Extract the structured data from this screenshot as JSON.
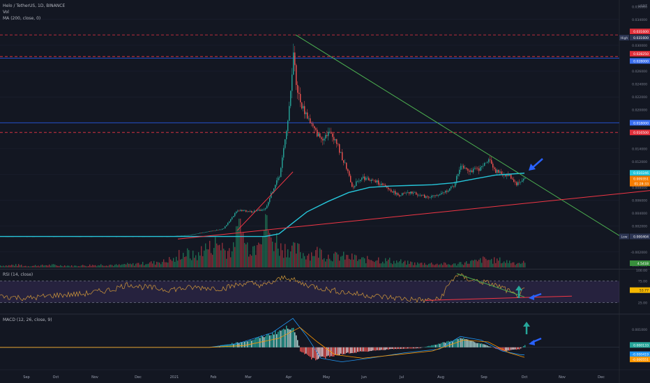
{
  "header": {
    "symbol_line": "Helo / TetherUS, 1D, BINANCE",
    "vol_label": "Vol",
    "ma_label": "MA (200, close, 0)"
  },
  "price_axis": {
    "unit": "USDT",
    "ticks": [
      "0.036000",
      "0.034000",
      "0.030000",
      "0.026000",
      "0.024000",
      "0.022000",
      "0.020000",
      "0.018000",
      "0.014000",
      "0.012000",
      "0.008000",
      "0.006000",
      "0.004000",
      "0.002000",
      "-0.002000",
      "-0.004000"
    ],
    "high_label": "High",
    "low_label": "Low"
  },
  "price_badges": [
    {
      "text": "0.031600",
      "color": "#e0303b"
    },
    {
      "text": "0.031600",
      "color": "#2c3553"
    },
    {
      "text": "0.028250",
      "color": "#e0303b"
    },
    {
      "text": "0.028000",
      "color": "#3a6ff0"
    },
    {
      "text": "0.018000",
      "color": "#3a6ff0"
    },
    {
      "text": "0.016500",
      "color": "#e0303b"
    },
    {
      "text": "0.010246",
      "color": "#26c6da"
    },
    {
      "text": "0.009351",
      "color": "#f57c00"
    },
    {
      "text": "01:28:33",
      "color": "#f57c00"
    },
    {
      "text": "0.000404",
      "color": "#2c3553"
    },
    {
      "text": "4.541B",
      "color": "#388e3c"
    }
  ],
  "rsi": {
    "label": "RSI (14, close)",
    "ticks": [
      "100.00",
      "75.00",
      "25.00"
    ],
    "value": "53.77"
  },
  "macd": {
    "label": "MACD (12, 26, close, 9)",
    "ticks": [
      "0.001000",
      "0.000133",
      "-0.000419",
      "-0.000551"
    ]
  },
  "time_axis": [
    "Sep",
    "Oct",
    "Nov",
    "Dec",
    "2021",
    "Feb",
    "Mar",
    "Apr",
    "May",
    "Jun",
    "Jul",
    "Aug",
    "Sep",
    "Oct",
    "Nov",
    "Dec"
  ],
  "colors": {
    "up": "#26a69a",
    "down": "#ef5350",
    "ma": "#26c6da",
    "trend_down": "#4caf50",
    "trend_up": "#f23645",
    "h_red": "#f23645",
    "h_blue": "#2962ff",
    "rsi": "#d49a3a",
    "rsi_band": "#7e57c2",
    "macd": "#2196f3",
    "signal": "#ff9800",
    "arrow_blue": "#2962ff",
    "arrow_teal": "#26a69a"
  },
  "chart_data": [
    {
      "type": "candlestick",
      "title": "Helo / TetherUS, 1D, BINANCE",
      "x_axis_labels": [
        "Sep",
        "Oct",
        "Nov",
        "Dec",
        "2021",
        "Feb",
        "Mar",
        "Apr",
        "May",
        "Jun",
        "Jul",
        "Aug",
        "Sep",
        "Oct",
        "Nov",
        "Dec"
      ],
      "ylim": [
        -0.0045,
        0.037
      ],
      "series": [
        {
          "name": "MA (200, close, 0)"
        }
      ],
      "close_path": [
        [
          0,
          0.0004
        ],
        [
          30,
          0.0004
        ],
        [
          60,
          0.0004
        ],
        [
          120,
          0.0004
        ],
        [
          180,
          0.0004
        ],
        [
          240,
          0.0004
        ],
        [
          270,
          0.0006
        ],
        [
          300,
          0.0012
        ],
        [
          320,
          0.0016
        ],
        [
          340,
          0.0045
        ],
        [
          360,
          0.0042
        ],
        [
          380,
          0.0047
        ],
        [
          390,
          0.0075
        ],
        [
          400,
          0.0098
        ],
        [
          410,
          0.0165
        ],
        [
          415,
          0.022
        ],
        [
          418,
          0.025
        ],
        [
          420,
          0.0295
        ],
        [
          424,
          0.024
        ],
        [
          430,
          0.021
        ],
        [
          440,
          0.019
        ],
        [
          450,
          0.0168
        ],
        [
          460,
          0.0155
        ],
        [
          470,
          0.0165
        ],
        [
          480,
          0.0155
        ],
        [
          490,
          0.0125
        ],
        [
          500,
          0.01
        ],
        [
          505,
          0.0075
        ],
        [
          510,
          0.009
        ],
        [
          520,
          0.0095
        ],
        [
          540,
          0.0088
        ],
        [
          560,
          0.0075
        ],
        [
          570,
          0.0068
        ],
        [
          590,
          0.0072
        ],
        [
          610,
          0.0065
        ],
        [
          630,
          0.0068
        ],
        [
          650,
          0.0082
        ],
        [
          660,
          0.0115
        ],
        [
          675,
          0.0105
        ],
        [
          690,
          0.011
        ],
        [
          700,
          0.0125
        ],
        [
          710,
          0.0105
        ],
        [
          720,
          0.01
        ],
        [
          730,
          0.0098
        ],
        [
          740,
          0.0085
        ],
        [
          752,
          0.0094
        ]
      ],
      "ma_path": [
        [
          0,
          0.0004
        ],
        [
          380,
          0.0004
        ],
        [
          400,
          0.0008
        ],
        [
          420,
          0.0025
        ],
        [
          440,
          0.0042
        ],
        [
          470,
          0.0058
        ],
        [
          500,
          0.0072
        ],
        [
          530,
          0.008
        ],
        [
          560,
          0.0082
        ],
        [
          590,
          0.0083
        ],
        [
          620,
          0.0084
        ],
        [
          650,
          0.0087
        ],
        [
          680,
          0.0093
        ],
        [
          710,
          0.0099
        ],
        [
          752,
          0.0102
        ]
      ],
      "annotations": {
        "horizontal_lines": [
          {
            "y": 0.0316,
            "color": "#f23645",
            "style": "dashed"
          },
          {
            "y": 0.02825,
            "color": "#f23645",
            "style": "dashed"
          },
          {
            "y": 0.028,
            "color": "#2962ff",
            "style": "solid"
          },
          {
            "y": 0.018,
            "color": "#2962ff",
            "style": "solid"
          },
          {
            "y": 0.0165,
            "color": "#f23645",
            "style": "dashed"
          }
        ],
        "trendlines": [
          {
            "from": [
              424,
              0.0316
            ],
            "to": [
              890,
              0.0004
            ],
            "color": "#4caf50"
          },
          {
            "from": [
              255,
              0.0
            ],
            "to": [
              932,
              0.0075
            ],
            "color": "#f23645"
          },
          {
            "from": [
              340,
              0.0013
            ],
            "to": [
              420,
              0.0104
            ],
            "color": "#f23645"
          }
        ]
      }
    },
    {
      "type": "bar",
      "title": "Vol",
      "last_value_label": "4.541B",
      "bars_rel": [
        0.05,
        0.06,
        0.04,
        0.05,
        0.06,
        0.05,
        0.04,
        0.05,
        0.06,
        0.07,
        0.06,
        0.08,
        0.1,
        0.12,
        0.15,
        0.2,
        0.35,
        0.3,
        0.5,
        0.6,
        0.45,
        0.8,
        0.55,
        1.0,
        0.7,
        0.5,
        0.45,
        0.35,
        0.4,
        0.3,
        0.28,
        0.25,
        0.2,
        0.22,
        0.18,
        0.15,
        0.12,
        0.1,
        0.1,
        0.09,
        0.08,
        0.12,
        0.15,
        0.2,
        0.18,
        0.15,
        0.12,
        0.1
      ]
    },
    {
      "type": "line",
      "title": "RSI (14, close)",
      "ylim": [
        0,
        100
      ],
      "band": [
        25,
        75
      ],
      "current": 53.77,
      "path": [
        [
          0,
          40
        ],
        [
          40,
          35
        ],
        [
          80,
          42
        ],
        [
          120,
          45
        ],
        [
          160,
          55
        ],
        [
          185,
          68
        ],
        [
          200,
          62
        ],
        [
          240,
          55
        ],
        [
          280,
          60
        ],
        [
          320,
          58
        ],
        [
          350,
          70
        ],
        [
          380,
          65
        ],
        [
          410,
          85
        ],
        [
          430,
          70
        ],
        [
          470,
          55
        ],
        [
          510,
          45
        ],
        [
          550,
          38
        ],
        [
          580,
          34
        ],
        [
          610,
          30
        ],
        [
          630,
          32
        ],
        [
          645,
          70
        ],
        [
          655,
          90
        ],
        [
          670,
          80
        ],
        [
          700,
          70
        ],
        [
          720,
          60
        ],
        [
          740,
          40
        ],
        [
          752,
          53.77
        ]
      ],
      "trendlines": [
        {
          "from": [
            655,
            92
          ],
          "to": [
            752,
            38
          ],
          "color": "#4caf50"
        },
        {
          "from": [
            610,
            30
          ],
          "to": [
            820,
            40
          ],
          "color": "#f23645"
        }
      ]
    },
    {
      "type": "bar",
      "title": "MACD (12, 26, close, 9)",
      "ylim": [
        -0.0012,
        0.0018
      ],
      "values_last": {
        "histogram": 0.000133,
        "macd": -0.000419,
        "signal": -0.000551
      },
      "hist_path": [
        [
          0,
          0
        ],
        [
          300,
          0
        ],
        [
          330,
          0.0002
        ],
        [
          360,
          0.0004
        ],
        [
          400,
          0.0009
        ],
        [
          420,
          0.0012
        ],
        [
          430,
          -0.0002
        ],
        [
          450,
          -0.0007
        ],
        [
          470,
          -0.0005
        ],
        [
          500,
          -0.0003
        ],
        [
          530,
          -0.0002
        ],
        [
          560,
          -0.0001
        ],
        [
          600,
          -5e-05
        ],
        [
          640,
          0.0003
        ],
        [
          660,
          0.0005
        ],
        [
          690,
          0.0002
        ],
        [
          720,
          -0.0002
        ],
        [
          745,
          -0.0001
        ],
        [
          752,
          0.000133
        ]
      ],
      "macd_path": [
        [
          0,
          0
        ],
        [
          300,
          0
        ],
        [
          340,
          0.0002
        ],
        [
          390,
          0.0008
        ],
        [
          420,
          0.0016
        ],
        [
          440,
          0.0006
        ],
        [
          460,
          -0.0006
        ],
        [
          490,
          -0.0008
        ],
        [
          530,
          -0.0006
        ],
        [
          580,
          -0.0003
        ],
        [
          630,
          -0.0001
        ],
        [
          660,
          0.0006
        ],
        [
          690,
          0.0004
        ],
        [
          720,
          -0.0002
        ],
        [
          745,
          -0.0004
        ],
        [
          752,
          -0.000419
        ]
      ],
      "signal_path": [
        [
          0,
          0
        ],
        [
          300,
          0
        ],
        [
          350,
          0.0001
        ],
        [
          400,
          0.0005
        ],
        [
          430,
          0.0011
        ],
        [
          455,
          0.0003
        ],
        [
          480,
          -0.0004
        ],
        [
          520,
          -0.0006
        ],
        [
          570,
          -0.0004
        ],
        [
          620,
          -0.0002
        ],
        [
          665,
          0.0004
        ],
        [
          700,
          0.0003
        ],
        [
          730,
          -0.0003
        ],
        [
          752,
          -0.000551
        ]
      ]
    }
  ]
}
